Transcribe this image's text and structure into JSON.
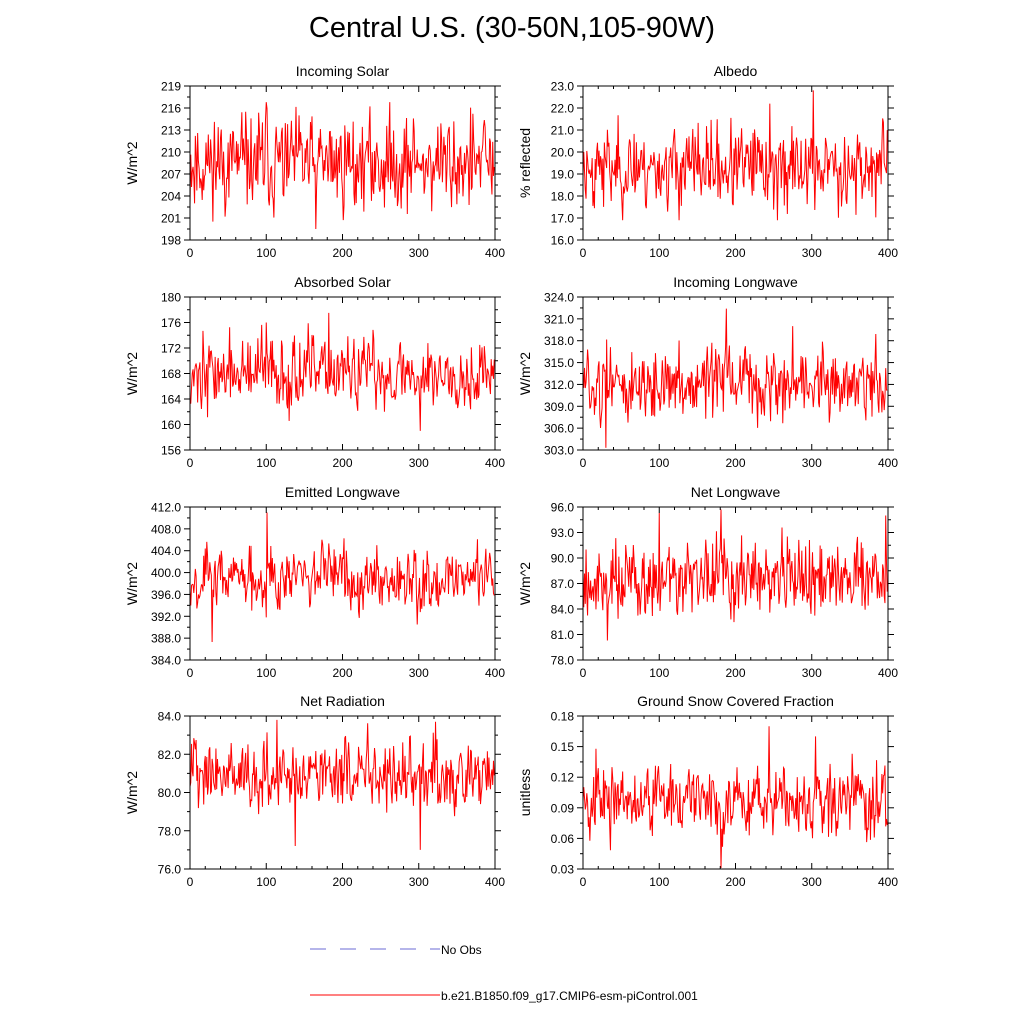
{
  "page": {
    "title": "Central U.S. (30-50N,105-90W)"
  },
  "legend": [
    {
      "label": "No Obs",
      "color": "#6b6bd6",
      "style": "dashed"
    },
    {
      "label": "b.e21.B1850.f09_g17.CMIP6-esm-piControl.001",
      "color": "#ff0000",
      "style": "solid"
    }
  ],
  "chart_data": [
    {
      "type": "line",
      "title": "Incoming Solar",
      "xlabel": "",
      "ylabel": "W/m^2",
      "xlim": [
        0,
        400
      ],
      "ylim": [
        198,
        219
      ],
      "xticks": [
        "0",
        "100",
        "200",
        "300",
        "400"
      ],
      "yticks": [
        "198",
        "201",
        "204",
        "207",
        "210",
        "213",
        "216",
        "219"
      ],
      "series": [
        {
          "color": "#ff0000",
          "n": 400,
          "mean": 208.5,
          "amplitude": 3.2,
          "seed": 11,
          "min": 199.5,
          "max": 216.8,
          "spikes": [
            [
              100,
              216.8
            ],
            [
              165,
              199.5
            ],
            [
              30,
              200.5
            ]
          ]
        }
      ]
    },
    {
      "type": "line",
      "title": "Albedo",
      "xlabel": "",
      "ylabel": "% reflected",
      "xlim": [
        0,
        400
      ],
      "ylim": [
        16.0,
        23.0
      ],
      "xticks": [
        "0",
        "100",
        "200",
        "300",
        "400"
      ],
      "yticks": [
        "16.0",
        "17.0",
        "18.0",
        "19.0",
        "20.0",
        "21.0",
        "22.0",
        "23.0"
      ],
      "series": [
        {
          "color": "#ff0000",
          "n": 400,
          "mean": 19.3,
          "amplitude": 0.9,
          "seed": 23,
          "min": 16.9,
          "max": 22.8,
          "spikes": [
            [
              302,
              22.8
            ],
            [
              245,
              22.2
            ],
            [
              255,
              16.9
            ]
          ]
        }
      ]
    },
    {
      "type": "line",
      "title": "Absorbed Solar",
      "xlabel": "",
      "ylabel": "W/m^2",
      "xlim": [
        0,
        400
      ],
      "ylim": [
        156,
        180
      ],
      "xticks": [
        "0",
        "100",
        "200",
        "300",
        "400"
      ],
      "yticks": [
        "156",
        "160",
        "164",
        "168",
        "172",
        "176",
        "180"
      ],
      "series": [
        {
          "color": "#ff0000",
          "n": 400,
          "mean": 168.0,
          "amplitude": 2.8,
          "seed": 37,
          "min": 159.0,
          "max": 177.5,
          "spikes": [
            [
              182,
              177.5
            ],
            [
              302,
              159.0
            ],
            [
              100,
              176.0
            ]
          ]
        }
      ]
    },
    {
      "type": "line",
      "title": "Incoming Longwave",
      "xlabel": "",
      "ylabel": "W/m^2",
      "xlim": [
        0,
        400
      ],
      "ylim": [
        303.0,
        324.0
      ],
      "xticks": [
        "0",
        "100",
        "200",
        "300",
        "400"
      ],
      "yticks": [
        "303.0",
        "306.0",
        "309.0",
        "312.0",
        "315.0",
        "318.0",
        "321.0",
        "324.0"
      ],
      "series": [
        {
          "color": "#ff0000",
          "n": 400,
          "mean": 312.0,
          "amplitude": 2.4,
          "seed": 51,
          "min": 303.3,
          "max": 322.4,
          "spikes": [
            [
              188,
              322.4
            ],
            [
              30,
              303.3
            ],
            [
              275,
              320.0
            ]
          ]
        }
      ]
    },
    {
      "type": "line",
      "title": "Emitted Longwave",
      "xlabel": "",
      "ylabel": "W/m^2",
      "xlim": [
        0,
        400
      ],
      "ylim": [
        384.0,
        412.0
      ],
      "xticks": [
        "0",
        "100",
        "200",
        "300",
        "400"
      ],
      "yticks": [
        "384.0",
        "388.0",
        "392.0",
        "396.0",
        "400.0",
        "404.0",
        "408.0",
        "412.0"
      ],
      "series": [
        {
          "color": "#ff0000",
          "n": 400,
          "mean": 399.2,
          "amplitude": 2.8,
          "seed": 67,
          "min": 387.3,
          "max": 411.0,
          "spikes": [
            [
              101,
              411.0
            ],
            [
              29,
              387.3
            ],
            [
              298,
              390.5
            ]
          ]
        }
      ]
    },
    {
      "type": "line",
      "title": "Net Longwave",
      "xlabel": "",
      "ylabel": "W/m^2",
      "xlim": [
        0,
        400
      ],
      "ylim": [
        78.0,
        96.0
      ],
      "xticks": [
        "0",
        "100",
        "200",
        "300",
        "400"
      ],
      "yticks": [
        "78.0",
        "81.0",
        "84.0",
        "87.0",
        "90.0",
        "93.0",
        "96.0"
      ],
      "series": [
        {
          "color": "#ff0000",
          "n": 400,
          "mean": 87.5,
          "amplitude": 2.3,
          "seed": 79,
          "min": 80.3,
          "max": 95.7,
          "spikes": [
            [
              181,
              95.7
            ],
            [
              100,
              95.3
            ],
            [
              397,
              95.0
            ],
            [
              32,
              80.3
            ]
          ]
        }
      ]
    },
    {
      "type": "line",
      "title": "Net Radiation",
      "xlabel": "",
      "ylabel": "W/m^2",
      "xlim": [
        0,
        400
      ],
      "ylim": [
        76.0,
        84.0
      ],
      "xticks": [
        "0",
        "100",
        "200",
        "300",
        "400"
      ],
      "yticks": [
        "76.0",
        "78.0",
        "80.0",
        "82.0",
        "84.0"
      ],
      "series": [
        {
          "color": "#ff0000",
          "n": 400,
          "mean": 80.9,
          "amplitude": 0.85,
          "seed": 93,
          "min": 77.0,
          "max": 83.8,
          "spikes": [
            [
              114,
              83.8
            ],
            [
              322,
              83.7
            ],
            [
              302,
              77.0
            ],
            [
              138,
              77.2
            ]
          ]
        }
      ]
    },
    {
      "type": "line",
      "title": "Ground Snow Covered Fraction",
      "xlabel": "",
      "ylabel": "unitless",
      "xlim": [
        0,
        400
      ],
      "ylim": [
        0.03,
        0.18
      ],
      "xticks": [
        "0",
        "100",
        "200",
        "300",
        "400"
      ],
      "yticks": [
        "0.03",
        "0.06",
        "0.09",
        "0.12",
        "0.15",
        "0.18"
      ],
      "series": [
        {
          "color": "#ff0000",
          "n": 400,
          "mean": 0.097,
          "amplitude": 0.017,
          "seed": 107,
          "min": 0.031,
          "max": 0.17,
          "spikes": [
            [
              244,
              0.17
            ],
            [
              181,
              0.031
            ],
            [
              305,
              0.16
            ]
          ]
        }
      ]
    }
  ]
}
